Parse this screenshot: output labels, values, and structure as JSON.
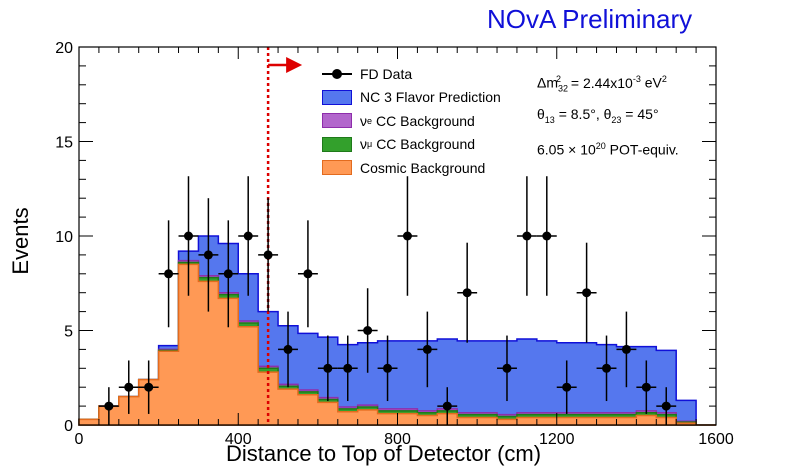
{
  "banner": "NOvA Preliminary",
  "chart_data": {
    "type": "histogram",
    "title": "",
    "xlabel": "Distance to Top of Detector (cm)",
    "ylabel": "Events",
    "xlim": [
      0,
      1600
    ],
    "ylim": [
      0,
      20
    ],
    "xticks": [
      "0",
      "400",
      "800",
      "1200",
      "1600"
    ],
    "yticks": [
      "0",
      "5",
      "10",
      "15",
      "20"
    ],
    "bin_edges": [
      0,
      50,
      100,
      150,
      200,
      250,
      300,
      350,
      400,
      450,
      500,
      550,
      600,
      650,
      700,
      750,
      800,
      850,
      900,
      950,
      1000,
      1050,
      1100,
      1150,
      1200,
      1250,
      1300,
      1350,
      1400,
      1450,
      1500,
      1550,
      1600
    ],
    "stack": [
      {
        "name": "Cosmic Background",
        "color": "#ff9955",
        "values": [
          0.3,
          1.0,
          1.5,
          2.4,
          3.9,
          8.5,
          7.6,
          6.7,
          5.2,
          2.8,
          1.9,
          1.6,
          1.2,
          0.7,
          0.8,
          0.6,
          0.6,
          0.5,
          0.6,
          0.4,
          0.4,
          0.3,
          0.4,
          0.4,
          0.4,
          0.4,
          0.4,
          0.4,
          0.5,
          0.4,
          0.1,
          0.0
        ]
      },
      {
        "name": "νμ CC Background",
        "color": "#33a02c",
        "values": [
          0.0,
          0.0,
          0.0,
          0.0,
          0.05,
          0.1,
          0.2,
          0.2,
          0.2,
          0.2,
          0.15,
          0.15,
          0.15,
          0.15,
          0.15,
          0.15,
          0.15,
          0.15,
          0.15,
          0.15,
          0.15,
          0.15,
          0.15,
          0.15,
          0.15,
          0.15,
          0.15,
          0.15,
          0.15,
          0.15,
          0.05,
          0.0
        ]
      },
      {
        "name": "νe CC Background",
        "color": "#b266cc",
        "values": [
          0.0,
          0.0,
          0.0,
          0.0,
          0.05,
          0.1,
          0.1,
          0.1,
          0.1,
          0.1,
          0.1,
          0.1,
          0.1,
          0.1,
          0.1,
          0.1,
          0.1,
          0.1,
          0.1,
          0.1,
          0.1,
          0.1,
          0.1,
          0.1,
          0.1,
          0.1,
          0.1,
          0.1,
          0.1,
          0.1,
          0.05,
          0.0
        ]
      },
      {
        "name": "NC 3 Flavor Prediction",
        "color": "#5577ee",
        "values": [
          0.0,
          0.0,
          0.0,
          0.0,
          0.2,
          0.5,
          2.1,
          2.6,
          2.5,
          2.9,
          3.1,
          3.0,
          3.2,
          3.3,
          3.3,
          3.6,
          3.6,
          3.7,
          3.7,
          3.8,
          3.8,
          3.9,
          3.9,
          3.8,
          3.7,
          3.7,
          3.6,
          3.5,
          3.4,
          3.3,
          1.1,
          0.0
        ]
      }
    ],
    "points": {
      "name": "FD Data",
      "x": [
        75,
        125,
        175,
        225,
        275,
        325,
        375,
        425,
        475,
        525,
        575,
        625,
        675,
        725,
        775,
        825,
        875,
        925,
        975,
        1075,
        1125,
        1175,
        1225,
        1275,
        1325,
        1375,
        1425,
        1475
      ],
      "y": [
        1,
        2,
        2,
        8,
        10,
        9,
        8,
        10,
        9,
        4,
        8,
        3,
        3,
        5,
        3,
        10,
        4,
        1,
        7,
        3,
        10,
        10,
        2,
        7,
        3,
        4,
        2,
        1
      ]
    },
    "cut": {
      "x": 475
    },
    "legend_placement": "top-center",
    "annotations": [
      "Δm²₃₂ = 2.44x10⁻³ eV²",
      "θ₁₃ = 8.5°, θ₂₃ = 45°",
      "6.05 × 10²⁰ POT-equiv."
    ]
  },
  "legend": {
    "data": "FD Data",
    "nc": "NC 3 Flavor Prediction",
    "nue": "CC Background",
    "numu": "CC Background",
    "cosmic": "Cosmic Background",
    "nue_prefix": "ν",
    "nue_sub": "e",
    "numu_prefix": "ν",
    "numu_sub": "μ"
  },
  "params": {
    "line1_a": "Δm",
    "line1_sub": "32",
    "line1_sup": "2",
    "line1_b": " = 2.44x10",
    "line1_sup2": "-3",
    "line1_c": " eV",
    "line1_sup3": "2",
    "line2_a": "θ",
    "line2_sub1": "13",
    "line2_b": " = 8.5°, θ",
    "line2_sub2": "23",
    "line2_c": " = 45°",
    "line3_a": "6.05 × 10",
    "line3_sup": "20",
    "line3_b": " POT-equiv."
  }
}
